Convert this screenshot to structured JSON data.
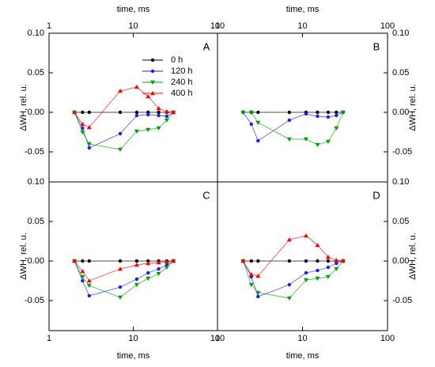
{
  "chart_data": [
    {
      "type": "line",
      "label": "A",
      "x_label": "time, ms",
      "y_label": "ΔWH, rel. u.",
      "x_axis_position": "top",
      "y_axis_position": "left",
      "xscale": "log",
      "legend": "upper right",
      "x": [
        2,
        2.5,
        3,
        7,
        11,
        15,
        20,
        25,
        30
      ],
      "series": [
        {
          "name": "0 h",
          "color": "#000000",
          "marker": "circle",
          "values": [
            0,
            0,
            0,
            0,
            0,
            0,
            0,
            0,
            0
          ]
        },
        {
          "name": "120 h",
          "color": "#1a1aff",
          "marker": "circle",
          "values": [
            0,
            -0.02,
            -0.045,
            -0.027,
            -0.004,
            -0.003,
            -0.004,
            -0.005,
            0
          ]
        },
        {
          "name": "240 h",
          "color": "#00a000",
          "marker": "triangle-down",
          "values": [
            0,
            -0.025,
            -0.04,
            -0.047,
            -0.024,
            -0.022,
            -0.02,
            -0.01,
            0
          ]
        },
        {
          "name": "400 h",
          "color": "#ff0000",
          "marker": "triangle-up",
          "values": [
            0,
            -0.015,
            -0.019,
            0.027,
            0.032,
            0.02,
            0.005,
            0.001,
            0
          ]
        }
      ],
      "xlim": [
        1,
        100
      ],
      "xticks": [
        1,
        10,
        100
      ],
      "ylim": [
        -0.088,
        0.1
      ],
      "yticks": [
        {
          "value": -0.05,
          "label": "-0.05"
        },
        {
          "value": 0,
          "label": "0.00"
        },
        {
          "value": 0.05,
          "label": "0.05"
        },
        {
          "value": 0.1,
          "label": "0.10"
        }
      ]
    },
    {
      "type": "line",
      "label": "B",
      "x_label": "time, ms",
      "y_label": "ΔWH, rel. u.",
      "x_axis_position": "top",
      "y_axis_position": "right",
      "xscale": "log",
      "x": [
        2,
        2.5,
        3,
        7,
        11,
        15,
        20,
        25,
        30
      ],
      "series": [
        {
          "color": "#000000",
          "marker": "circle",
          "values": [
            0,
            0,
            0,
            0,
            0,
            0,
            0,
            0,
            0
          ]
        },
        {
          "color": "#1a1aff",
          "marker": "circle",
          "values": [
            0,
            -0.015,
            -0.036,
            -0.01,
            -0.002,
            -0.005,
            -0.006,
            -0.004,
            0
          ]
        },
        {
          "color": "#00a000",
          "marker": "triangle-down",
          "values": [
            0,
            0,
            -0.013,
            -0.034,
            -0.034,
            -0.041,
            -0.037,
            -0.02,
            0
          ]
        }
      ],
      "xlim": [
        1,
        100
      ],
      "xticks": [
        1,
        10,
        100
      ],
      "ylim": [
        -0.088,
        0.1
      ],
      "yticks": [
        {
          "value": -0.05,
          "label": "-0.05"
        },
        {
          "value": 0,
          "label": "0.00"
        },
        {
          "value": 0.05,
          "label": "0.05"
        },
        {
          "value": 0.1,
          "label": "0.10"
        }
      ]
    },
    {
      "type": "line",
      "label": "C",
      "x_label": "time, ms",
      "y_label": "ΔWH, rel. u.",
      "x_axis_position": "bottom",
      "y_axis_position": "left",
      "xscale": "log",
      "x": [
        2,
        2.5,
        3,
        7,
        11,
        15,
        20,
        25,
        30
      ],
      "series": [
        {
          "color": "#000000",
          "marker": "circle",
          "values": [
            0,
            0,
            0,
            0,
            0,
            0,
            0,
            0,
            0
          ]
        },
        {
          "color": "#1a1aff",
          "marker": "circle",
          "values": [
            0,
            -0.025,
            -0.044,
            -0.033,
            -0.023,
            -0.015,
            -0.01,
            -0.005,
            0
          ]
        },
        {
          "color": "#00a000",
          "marker": "triangle-down",
          "values": [
            0,
            -0.02,
            -0.031,
            -0.046,
            -0.03,
            -0.022,
            -0.016,
            -0.008,
            0
          ]
        },
        {
          "color": "#ff0000",
          "marker": "triangle-up",
          "values": [
            0,
            -0.013,
            -0.025,
            -0.01,
            -0.005,
            -0.003,
            -0.002,
            -0.001,
            0
          ]
        }
      ],
      "xlim": [
        1,
        100
      ],
      "xticks": [
        1,
        10,
        100
      ],
      "ylim": [
        -0.088,
        0.1
      ],
      "yticks": [
        {
          "value": -0.05,
          "label": "-0.05"
        },
        {
          "value": 0,
          "label": "0.00"
        },
        {
          "value": 0.05,
          "label": "0.05"
        },
        {
          "value": 0.1,
          "label": "0.10"
        }
      ]
    },
    {
      "type": "line",
      "label": "D",
      "x_label": "time, ms",
      "y_label": "ΔWH, rel. u.",
      "x_axis_position": "bottom",
      "y_axis_position": "right",
      "xscale": "log",
      "x": [
        2,
        2.5,
        3,
        7,
        11,
        15,
        20,
        25,
        30
      ],
      "series": [
        {
          "color": "#000000",
          "marker": "circle",
          "values": [
            0,
            0,
            0,
            0,
            0,
            0,
            0,
            0,
            0
          ]
        },
        {
          "color": "#1a1aff",
          "marker": "circle",
          "values": [
            0,
            -0.02,
            -0.045,
            -0.03,
            -0.015,
            -0.012,
            -0.008,
            -0.003,
            0
          ]
        },
        {
          "color": "#00a000",
          "marker": "triangle-down",
          "values": [
            0,
            -0.03,
            -0.04,
            -0.047,
            -0.024,
            -0.022,
            -0.02,
            -0.01,
            0
          ]
        },
        {
          "color": "#ff0000",
          "marker": "triangle-up",
          "values": [
            0,
            -0.017,
            -0.019,
            0.027,
            0.032,
            0.02,
            0.005,
            0.001,
            0
          ]
        }
      ],
      "xlim": [
        1,
        100
      ],
      "xticks": [
        1,
        10,
        100
      ],
      "ylim": [
        -0.088,
        0.1
      ],
      "yticks": [
        {
          "value": -0.05,
          "label": "-0.05"
        },
        {
          "value": 0,
          "label": "0.00"
        },
        {
          "value": 0.05,
          "label": "0.05"
        },
        {
          "value": 0.1,
          "label": "0.10"
        }
      ]
    }
  ]
}
